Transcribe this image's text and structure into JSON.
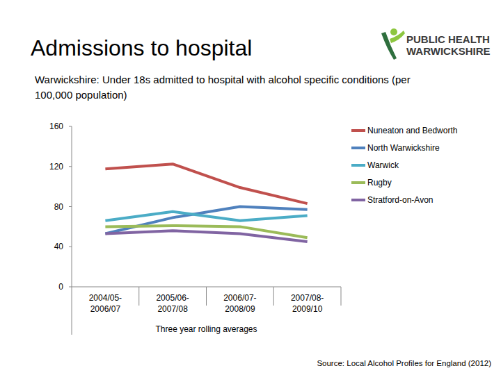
{
  "header": {
    "title": "Admissions to hospital",
    "logo": [
      "PUBLIC HEALTH",
      "WARWICKSHIRE"
    ]
  },
  "chart_data": {
    "type": "line",
    "title": "Warwickshire: Under 18s admitted to hospital with alcohol specific conditions (per 100,000 population)",
    "x_label": "Three year rolling averages",
    "categories": [
      "2004/05-2006/07",
      "2005/06-2007/08",
      "2006/07-2008/09",
      "2007/08-2009/10"
    ],
    "series": [
      {
        "name": "Nuneaton and Bedworth",
        "color": "#c0504d",
        "values": [
          117.5,
          122.5,
          99,
          83
        ]
      },
      {
        "name": "North Warwickshire",
        "color": "#4f81bd",
        "values": [
          53,
          69,
          80,
          77
        ]
      },
      {
        "name": "Warwick",
        "color": "#4bacc6",
        "values": [
          66,
          75,
          66,
          71
        ]
      },
      {
        "name": "Rugby",
        "color": "#9bbb59",
        "values": [
          60,
          61,
          60,
          49
        ]
      },
      {
        "name": "Stratford-on-Avon",
        "color": "#8064a2",
        "values": [
          53,
          56,
          53,
          45
        ]
      }
    ],
    "ylim": [
      0,
      160
    ],
    "yticks": [
      0,
      40,
      80,
      120,
      160
    ],
    "grid": false,
    "legend": "right"
  },
  "source": "Source: Local Alcohol Profiles for England (2012)"
}
